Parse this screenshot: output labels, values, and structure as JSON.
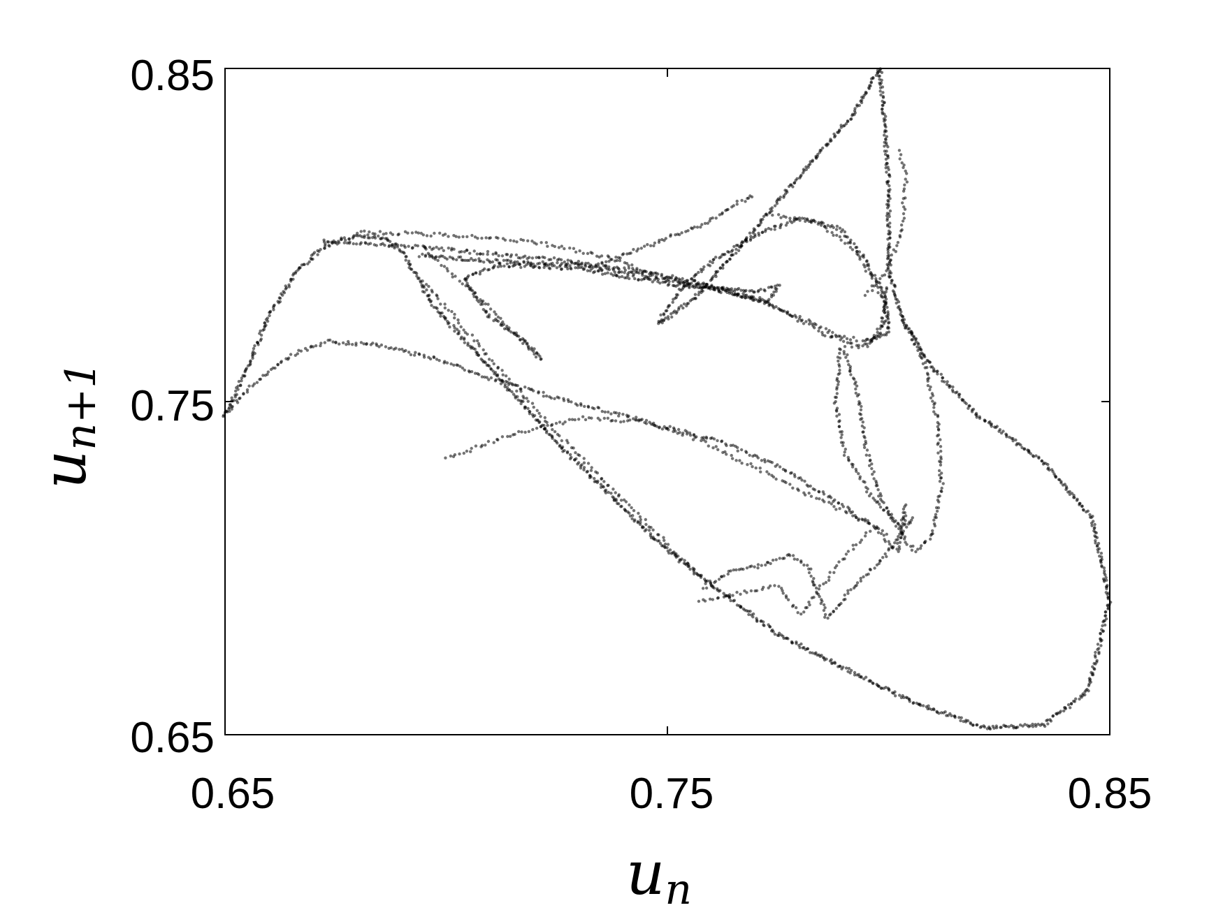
{
  "chart_data": {
    "type": "scatter",
    "title": "",
    "xlabel": {
      "base": "u",
      "sub": "n"
    },
    "ylabel": {
      "base": "u",
      "sub": "n+1"
    },
    "xlim": [
      0.65,
      0.85
    ],
    "ylim": [
      0.65,
      0.85
    ],
    "xticks": [
      0.65,
      0.75,
      0.85
    ],
    "yticks": [
      0.65,
      0.75,
      0.85
    ],
    "xtick_labels": [
      "0.65",
      "0.75",
      "0.85"
    ],
    "ytick_labels": [
      "0.65",
      "0.75",
      "0.85"
    ],
    "grid": false,
    "legend": false,
    "marker_color": "#000000",
    "point_opacity": 0.55,
    "curves": [
      {
        "points": [
          [
            0.65,
            0.746
          ],
          [
            0.655,
            0.76
          ],
          [
            0.66,
            0.776
          ],
          [
            0.666,
            0.789
          ],
          [
            0.673,
            0.797
          ],
          [
            0.68,
            0.8
          ],
          [
            0.686,
            0.799
          ],
          [
            0.69,
            0.795
          ],
          [
            0.693,
            0.788
          ],
          [
            0.697,
            0.779
          ],
          [
            0.703,
            0.77
          ],
          [
            0.71,
            0.76
          ],
          [
            0.718,
            0.748
          ],
          [
            0.727,
            0.735
          ],
          [
            0.737,
            0.722
          ],
          [
            0.747,
            0.709
          ],
          [
            0.756,
            0.699
          ],
          [
            0.765,
            0.69
          ],
          [
            0.775,
            0.68
          ],
          [
            0.79,
            0.67
          ],
          [
            0.805,
            0.66
          ],
          [
            0.822,
            0.652
          ],
          [
            0.835,
            0.653
          ],
          [
            0.845,
            0.663
          ],
          [
            0.85,
            0.69
          ],
          [
            0.846,
            0.715
          ],
          [
            0.835,
            0.732
          ],
          [
            0.82,
            0.746
          ],
          [
            0.81,
            0.76
          ],
          [
            0.803,
            0.775
          ],
          [
            0.8,
            0.79
          ],
          [
            0.8,
            0.815
          ],
          [
            0.799,
            0.835
          ],
          [
            0.798,
            0.85
          ],
          [
            0.792,
            0.836
          ],
          [
            0.778,
            0.815
          ],
          [
            0.766,
            0.796
          ],
          [
            0.757,
            0.782
          ],
          [
            0.748,
            0.773
          ]
        ],
        "density": 6
      },
      {
        "points": [
          [
            0.65,
            0.746
          ],
          [
            0.657,
            0.756
          ],
          [
            0.665,
            0.764
          ],
          [
            0.673,
            0.768
          ],
          [
            0.684,
            0.767
          ],
          [
            0.697,
            0.763
          ],
          [
            0.712,
            0.756
          ],
          [
            0.728,
            0.75
          ],
          [
            0.745,
            0.744
          ],
          [
            0.762,
            0.738
          ],
          [
            0.776,
            0.73
          ],
          [
            0.788,
            0.72
          ],
          [
            0.797,
            0.712
          ],
          [
            0.802,
            0.705
          ],
          [
            0.804,
            0.717
          ]
        ],
        "density": 4
      },
      {
        "points": [
          [
            0.672,
            0.798
          ],
          [
            0.688,
            0.797
          ],
          [
            0.705,
            0.795
          ],
          [
            0.722,
            0.793
          ],
          [
            0.74,
            0.79
          ],
          [
            0.757,
            0.786
          ],
          [
            0.772,
            0.78
          ],
          [
            0.785,
            0.772
          ],
          [
            0.793,
            0.766
          ],
          [
            0.798,
            0.77
          ],
          [
            0.8,
            0.785
          ]
        ],
        "density": 4
      },
      {
        "points": [
          [
            0.68,
            0.801
          ],
          [
            0.7,
            0.8
          ],
          [
            0.72,
            0.798
          ],
          [
            0.737,
            0.793
          ],
          [
            0.75,
            0.787
          ],
          [
            0.763,
            0.783
          ],
          [
            0.775,
            0.778
          ],
          [
            0.786,
            0.77
          ],
          [
            0.797,
            0.768
          ]
        ],
        "density": 3
      },
      {
        "points": [
          [
            0.694,
            0.794
          ],
          [
            0.712,
            0.792
          ],
          [
            0.73,
            0.791
          ],
          [
            0.745,
            0.788
          ],
          [
            0.76,
            0.784
          ],
          [
            0.773,
            0.78
          ],
          [
            0.775,
            0.785
          ],
          [
            0.77,
            0.783
          ],
          [
            0.752,
            0.785
          ],
          [
            0.73,
            0.79
          ],
          [
            0.712,
            0.791
          ],
          [
            0.704,
            0.787
          ],
          [
            0.71,
            0.775
          ],
          [
            0.718,
            0.768
          ],
          [
            0.722,
            0.762
          ]
        ],
        "density": 5
      },
      {
        "points": [
          [
            0.695,
            0.796
          ],
          [
            0.7,
            0.79
          ],
          [
            0.706,
            0.783
          ],
          [
            0.71,
            0.778
          ],
          [
            0.715,
            0.771
          ],
          [
            0.721,
            0.763
          ]
        ],
        "density": 3
      },
      {
        "points": [
          [
            0.735,
            0.791
          ],
          [
            0.742,
            0.795
          ],
          [
            0.75,
            0.799
          ],
          [
            0.758,
            0.803
          ],
          [
            0.765,
            0.809
          ],
          [
            0.77,
            0.812
          ]
        ],
        "density": 4
      },
      {
        "points": [
          [
            0.748,
            0.774
          ],
          [
            0.752,
            0.782
          ],
          [
            0.76,
            0.792
          ],
          [
            0.77,
            0.8
          ],
          [
            0.78,
            0.805
          ],
          [
            0.789,
            0.802
          ],
          [
            0.795,
            0.792
          ],
          [
            0.799,
            0.782
          ],
          [
            0.8,
            0.771
          ],
          [
            0.795,
            0.768
          ]
        ],
        "density": 5
      },
      {
        "points": [
          [
            0.774,
            0.806
          ],
          [
            0.784,
            0.804
          ],
          [
            0.792,
            0.796
          ],
          [
            0.797,
            0.786
          ],
          [
            0.8,
            0.776
          ],
          [
            0.795,
            0.766
          ]
        ],
        "density": 3
      },
      {
        "points": [
          [
            0.795,
            0.782
          ],
          [
            0.8,
            0.79
          ],
          [
            0.803,
            0.802
          ],
          [
            0.804,
            0.818
          ],
          [
            0.802,
            0.826
          ]
        ],
        "density": 3
      },
      {
        "points": [
          [
            0.79,
            0.766
          ],
          [
            0.793,
            0.752
          ],
          [
            0.795,
            0.735
          ],
          [
            0.798,
            0.722
          ],
          [
            0.803,
            0.71
          ],
          [
            0.806,
            0.705
          ],
          [
            0.81,
            0.71
          ],
          [
            0.812,
            0.725
          ],
          [
            0.811,
            0.745
          ],
          [
            0.808,
            0.762
          ],
          [
            0.803,
            0.775
          ]
        ],
        "density": 4
      },
      {
        "points": [
          [
            0.789,
            0.766
          ],
          [
            0.788,
            0.75
          ],
          [
            0.79,
            0.735
          ],
          [
            0.796,
            0.722
          ],
          [
            0.803,
            0.712
          ],
          [
            0.804,
            0.72
          ]
        ],
        "density": 4
      },
      {
        "points": [
          [
            0.7,
            0.733
          ],
          [
            0.715,
            0.74
          ],
          [
            0.73,
            0.745
          ],
          [
            0.745,
            0.744
          ],
          [
            0.758,
            0.738
          ],
          [
            0.77,
            0.73
          ],
          [
            0.782,
            0.722
          ],
          [
            0.795,
            0.714
          ],
          [
            0.8,
            0.71
          ]
        ],
        "density": 3
      },
      {
        "points": [
          [
            0.758,
            0.694
          ],
          [
            0.764,
            0.699
          ],
          [
            0.772,
            0.701
          ],
          [
            0.778,
            0.704
          ],
          [
            0.782,
            0.7
          ],
          [
            0.784,
            0.693
          ],
          [
            0.786,
            0.685
          ],
          [
            0.792,
            0.694
          ],
          [
            0.8,
            0.705
          ],
          [
            0.806,
            0.716
          ]
        ],
        "density": 4
      },
      {
        "points": [
          [
            0.757,
            0.69
          ],
          [
            0.765,
            0.692
          ],
          [
            0.775,
            0.695
          ],
          [
            0.78,
            0.686
          ],
          [
            0.788,
            0.7
          ],
          [
            0.796,
            0.712
          ]
        ],
        "density": 3
      },
      {
        "points": [
          [
            0.695,
            0.786
          ],
          [
            0.702,
            0.775
          ],
          [
            0.712,
            0.76
          ],
          [
            0.722,
            0.745
          ],
          [
            0.732,
            0.731
          ],
          [
            0.742,
            0.718
          ],
          [
            0.751,
            0.706
          ],
          [
            0.758,
            0.697
          ]
        ],
        "density": 3
      }
    ]
  }
}
